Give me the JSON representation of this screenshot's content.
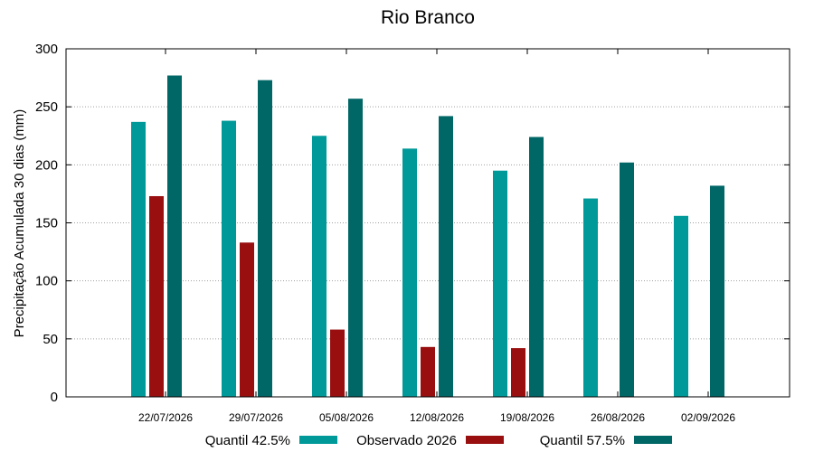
{
  "chart_data": {
    "type": "bar",
    "title": "Rio Branco",
    "xlabel": "",
    "ylabel": "Precipitação Acumulada 30 dias (mm)",
    "ylim": [
      0,
      300
    ],
    "yticks": [
      0,
      50,
      100,
      150,
      200,
      250,
      300
    ],
    "grid": true,
    "legend_position": "bottom",
    "categories": [
      "22/07/2026",
      "29/07/2026",
      "05/08/2026",
      "12/08/2026",
      "19/08/2026",
      "26/08/2026",
      "02/09/2026"
    ],
    "series": [
      {
        "name": "Quantil 42.5%",
        "color": "#009999",
        "values": [
          237,
          238,
          225,
          214,
          195,
          171,
          156
        ]
      },
      {
        "name": "Observado 2026",
        "color": "#990f0f",
        "values": [
          173,
          133,
          58,
          43,
          42,
          null,
          null
        ]
      },
      {
        "name": "Quantil 57.5%",
        "color": "#006666",
        "values": [
          277,
          273,
          257,
          242,
          224,
          202,
          182
        ]
      }
    ]
  }
}
